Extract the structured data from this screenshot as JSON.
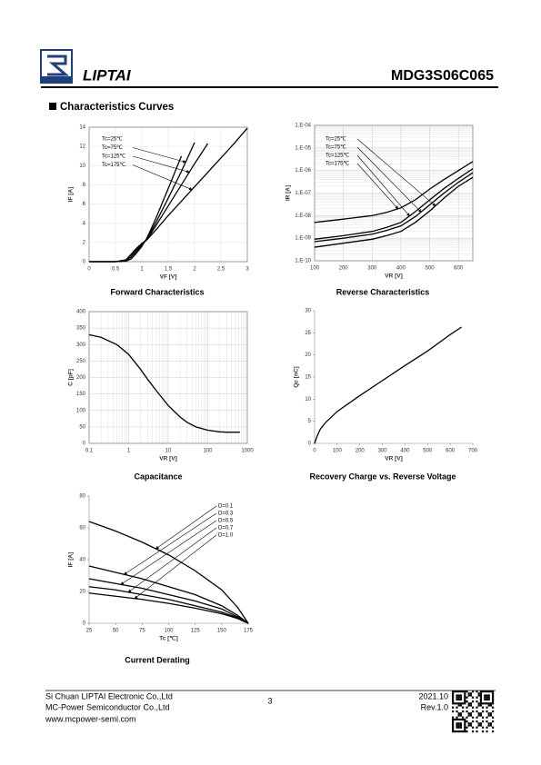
{
  "header": {
    "logo_text": "LIPTAI",
    "part_number": "MDG3S06C065"
  },
  "section_title": "Characteristics Curves",
  "chart_data": [
    {
      "type": "line",
      "caption": "Forward Characteristics",
      "xlabel": "VF [V]",
      "ylabel": "IF [A]",
      "x": [
        0,
        0.5,
        0.7,
        0.8,
        0.9,
        1.0,
        1.1,
        1.25,
        1.5,
        1.75,
        2.0,
        2.25,
        2.5,
        2.75,
        3.0
      ],
      "series": [
        {
          "name": "Tc=25℃",
          "color": "#000000",
          "values": [
            0,
            0,
            0.05,
            0.3,
            0.9,
            1.6,
            2.5,
            4.3,
            7.6,
            11.0,
            null,
            null,
            null,
            null,
            null
          ]
        },
        {
          "name": "Tc=75℃",
          "color": "#000000",
          "values": [
            0,
            0,
            0.1,
            0.5,
            1.1,
            1.7,
            2.4,
            3.9,
            6.6,
            9.4,
            12.4,
            null,
            null,
            null,
            null
          ]
        },
        {
          "name": "Tc=125℃",
          "color": "#000000",
          "values": [
            0,
            0,
            0.15,
            0.7,
            1.3,
            1.8,
            2.3,
            3.6,
            5.8,
            8.0,
            10.2,
            12.3,
            null,
            null,
            null
          ]
        },
        {
          "name": "Tc=175℃",
          "color": "#000000",
          "values": [
            0,
            0,
            0.2,
            0.8,
            1.4,
            1.9,
            2.3,
            3.2,
            4.8,
            6.3,
            7.8,
            9.3,
            10.8,
            12.3,
            13.9
          ]
        }
      ],
      "xlim": [
        0,
        3
      ],
      "xticks": [
        0,
        0.5,
        1,
        1.5,
        2,
        2.5,
        3
      ],
      "ylim": [
        0,
        14
      ],
      "yticks": [
        0,
        2,
        4,
        6,
        8,
        10,
        12,
        14
      ],
      "grid": true
    },
    {
      "type": "line",
      "caption": "Reverse Characteristics",
      "xlabel": "VR [V]",
      "ylabel": "IR [A]",
      "ylog": true,
      "x": [
        100,
        200,
        300,
        350,
        400,
        450,
        500,
        550,
        600,
        650
      ],
      "series": [
        {
          "name": "Tc=25℃",
          "color": "#000000",
          "values": [
            4e-10,
            6e-10,
            9e-10,
            1.3e-09,
            2e-09,
            5e-09,
            1.6e-08,
            6e-08,
            2e-07,
            5e-07
          ]
        },
        {
          "name": "Tc=75℃",
          "color": "#000000",
          "values": [
            7e-10,
            1e-09,
            1.5e-09,
            2.2e-09,
            3.5e-09,
            9e-09,
            3e-08,
            1e-07,
            3e-07,
            8e-07
          ]
        },
        {
          "name": "Tc=125℃",
          "color": "#000000",
          "values": [
            9e-10,
            1.3e-09,
            2e-09,
            3e-09,
            5e-09,
            1.5e-08,
            5e-08,
            1.6e-07,
            4.5e-07,
            1.2e-06
          ]
        },
        {
          "name": "Tc=175℃",
          "color": "#000000",
          "values": [
            5e-09,
            7e-09,
            1e-08,
            1.4e-08,
            2.2e-08,
            5e-08,
            1.5e-07,
            4e-07,
            1e-06,
            2.5e-06
          ]
        }
      ],
      "xlim": [
        100,
        650
      ],
      "xticks": [
        100,
        200,
        300,
        400,
        500,
        600
      ],
      "ylim": [
        1e-10,
        0.0001
      ],
      "yticks": [
        {
          "value": 1e-10,
          "label": "1.E-10"
        },
        {
          "value": 1e-09,
          "label": "1.E-09"
        },
        {
          "value": 1e-08,
          "label": "1.E-08"
        },
        {
          "value": 1e-07,
          "label": "1.E-07"
        },
        {
          "value": 1e-06,
          "label": "1.E-06"
        },
        {
          "value": 1e-05,
          "label": "1.E-05"
        },
        {
          "value": 0.0001,
          "label": "1.E-04"
        }
      ],
      "grid": true
    },
    {
      "type": "line",
      "caption": "Capacitance",
      "xlabel": "VR [V]",
      "ylabel": "C [pF]",
      "xlog": true,
      "x": [
        0.1,
        0.2,
        0.5,
        1,
        2,
        3,
        5,
        10,
        20,
        30,
        50,
        100,
        200,
        300,
        500,
        650
      ],
      "series": [
        {
          "name": "C",
          "color": "#000000",
          "values": [
            330,
            322,
            300,
            270,
            225,
            195,
            160,
            115,
            80,
            64,
            50,
            40,
            35,
            34,
            34,
            34
          ]
        }
      ],
      "xlim": [
        0.1,
        1000
      ],
      "xticks": [
        0.1,
        1,
        10,
        100,
        1000
      ],
      "ylim": [
        0,
        400
      ],
      "yticks": [
        0,
        50,
        100,
        150,
        200,
        250,
        300,
        350,
        400
      ],
      "grid": true
    },
    {
      "type": "line",
      "caption": "Recovery Charge vs. Reverse Voltage",
      "xlabel": "VR [V]",
      "ylabel": "Qc [nC]",
      "x": [
        0,
        10,
        25,
        50,
        100,
        200,
        300,
        400,
        500,
        600,
        650
      ],
      "series": [
        {
          "name": "Qc",
          "color": "#000000",
          "values": [
            0,
            1.5,
            3.2,
            4.8,
            7.2,
            10.8,
            14.2,
            17.6,
            20.9,
            24.6,
            26.3
          ]
        }
      ],
      "xlim": [
        0,
        700
      ],
      "xticks": [
        0,
        100,
        200,
        300,
        400,
        500,
        600,
        700
      ],
      "ylim": [
        0,
        30
      ],
      "yticks": [
        0,
        5,
        10,
        15,
        20,
        25,
        30
      ],
      "grid": false
    },
    {
      "type": "line",
      "caption": "Current Derating",
      "xlabel": "Tc [℃]",
      "ylabel": "IF [A]",
      "x": [
        25,
        50,
        75,
        100,
        125,
        150,
        165,
        175
      ],
      "series": [
        {
          "name": "D=0.1",
          "color": "#000000",
          "values": [
            64,
            58,
            51,
            43,
            33,
            21,
            10,
            0
          ]
        },
        {
          "name": "D=0.3",
          "color": "#000000",
          "values": [
            36,
            32,
            28,
            23,
            18,
            11,
            5,
            0
          ]
        },
        {
          "name": "D=0.5",
          "color": "#000000",
          "values": [
            28,
            25,
            22,
            18,
            14,
            9,
            4,
            0
          ]
        },
        {
          "name": "D=0.7",
          "color": "#000000",
          "values": [
            23,
            21,
            18,
            15,
            11,
            7,
            3.5,
            0
          ]
        },
        {
          "name": "D=1.0",
          "color": "#000000",
          "values": [
            19,
            17,
            15,
            12.5,
            9.5,
            6,
            3,
            0
          ]
        }
      ],
      "xlim": [
        25,
        175
      ],
      "xticks": [
        25,
        50,
        75,
        100,
        125,
        150,
        175
      ],
      "ylim": [
        0,
        80
      ],
      "yticks": [
        0,
        20,
        40,
        60,
        80
      ],
      "grid": false
    }
  ],
  "footer": {
    "company_1": "Si Chuan LIPTAI Electronic Co.,Ltd",
    "company_2": "MC-Power Semiconductor Co.,Ltd",
    "website": "www.mcpower-semi.com",
    "page": "3",
    "date": "2021.10",
    "revision": "Rev.1.0"
  }
}
